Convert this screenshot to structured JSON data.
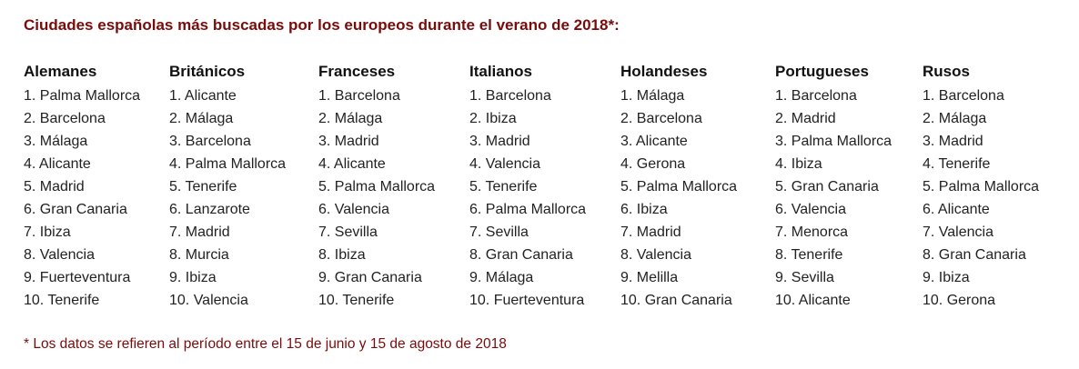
{
  "title": "Ciudades españolas más buscadas por los europeos durante el verano de 2018*:",
  "columns": [
    {
      "header": "Alemanes",
      "items": [
        "1. Palma Mallorca",
        "2. Barcelona",
        "3. Málaga",
        "4. Alicante",
        "5. Madrid",
        "6. Gran Canaria",
        "7. Ibiza",
        "8. Valencia",
        "9. Fuerteventura",
        "10. Tenerife"
      ]
    },
    {
      "header": "Británicos",
      "items": [
        "1. Alicante",
        "2. Málaga",
        "3. Barcelona",
        "4. Palma Mallorca",
        "5. Tenerife",
        "6. Lanzarote",
        "7. Madrid",
        "8. Murcia",
        "9. Ibiza",
        "10. Valencia"
      ]
    },
    {
      "header": "Franceses",
      "items": [
        "1. Barcelona",
        "2. Málaga",
        "3. Madrid",
        "4. Alicante",
        "5. Palma Mallorca",
        "6. Valencia",
        "7. Sevilla",
        "8. Ibiza",
        "9. Gran Canaria",
        "10. Tenerife"
      ]
    },
    {
      "header": "Italianos",
      "items": [
        "1. Barcelona",
        "2. Ibiza",
        "3. Madrid",
        "4. Valencia",
        "5. Tenerife",
        "6. Palma Mallorca",
        "7. Sevilla",
        "8. Gran Canaria",
        "9. Málaga",
        "10. Fuerteventura"
      ]
    },
    {
      "header": "Holandeses",
      "items": [
        "1. Málaga",
        "2. Barcelona",
        "3. Alicante",
        "4. Gerona",
        "5. Palma Mallorca",
        "6. Ibiza",
        "7. Madrid",
        "8. Valencia",
        "9. Melilla",
        "10. Gran Canaria"
      ]
    },
    {
      "header": "Portugueses",
      "items": [
        "1. Barcelona",
        "2. Madrid",
        "3. Palma Mallorca",
        "4. Ibiza",
        "5. Gran Canaria",
        "6. Valencia",
        "7. Menorca",
        "8. Tenerife",
        "9. Sevilla",
        "10. Alicante"
      ]
    },
    {
      "header": "Rusos",
      "items": [
        "1. Barcelona",
        "2. Málaga",
        "3. Madrid",
        "4. Tenerife",
        "5. Palma Mallorca",
        "6. Alicante",
        "7. Valencia",
        "8. Gran Canaria",
        "9. Ibiza",
        "10. Gerona"
      ]
    }
  ],
  "footnote": "* Los datos se refieren al período entre el 15 de junio y 15 de agosto de 2018",
  "colors": {
    "accent": "#7a0b0b",
    "text": "#222222"
  }
}
